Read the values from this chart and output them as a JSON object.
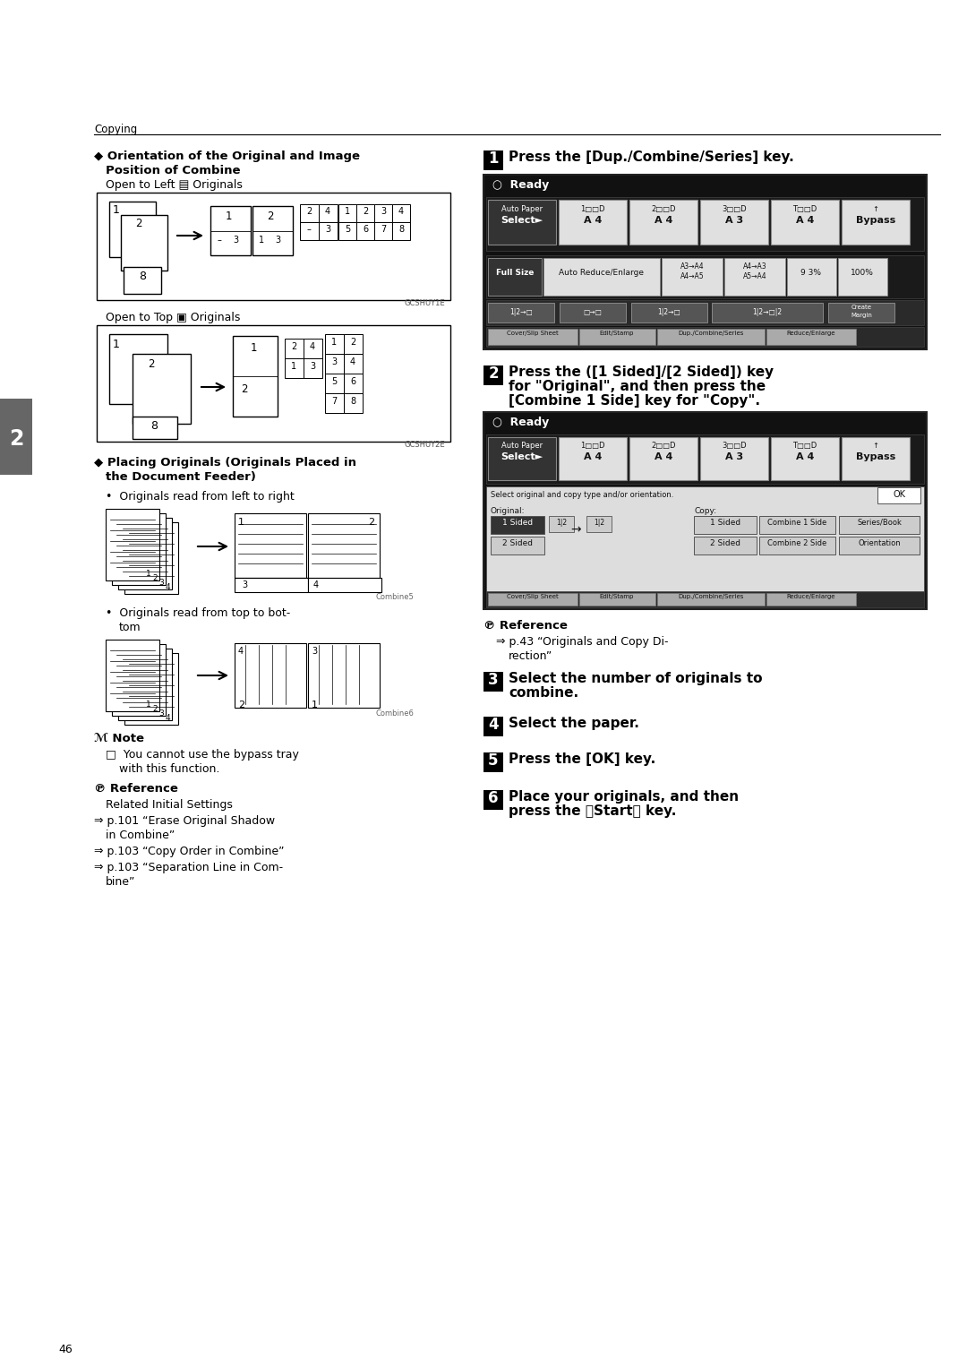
{
  "bg_color": "#ffffff",
  "page_number": "46",
  "header_text": "Copying",
  "chapter_num": "2"
}
